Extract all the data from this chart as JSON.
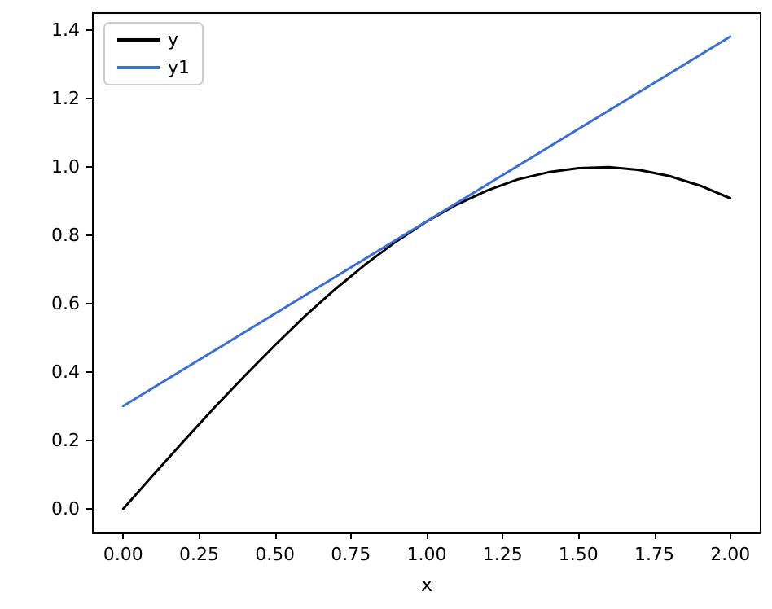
{
  "chart_data": {
    "type": "line",
    "xlabel": "x",
    "series": [
      {
        "name": "y",
        "color": "#000000",
        "x": [
          0,
          0.1,
          0.2,
          0.3,
          0.4,
          0.5,
          0.6,
          0.7,
          0.8,
          0.9,
          1.0,
          1.1,
          1.2,
          1.3,
          1.4,
          1.5,
          1.6,
          1.7,
          1.8,
          1.9,
          2.0
        ],
        "values": [
          0,
          0.1,
          0.199,
          0.296,
          0.389,
          0.479,
          0.565,
          0.644,
          0.717,
          0.783,
          0.841,
          0.891,
          0.932,
          0.964,
          0.985,
          0.997,
          1.0,
          0.992,
          0.974,
          0.946,
          0.909
        ]
      },
      {
        "name": "y1",
        "color": "#3a6fd6",
        "x": [
          0,
          2
        ],
        "values": [
          0.301,
          1.382
        ]
      }
    ],
    "xlim": [
      -0.1,
      2.1
    ],
    "ylim": [
      -0.069,
      1.451
    ],
    "xticks": [
      {
        "value": 0,
        "label": "0.00"
      },
      {
        "value": 0.25,
        "label": "0.25"
      },
      {
        "value": 0.5,
        "label": "0.50"
      },
      {
        "value": 0.75,
        "label": "0.75"
      },
      {
        "value": 1,
        "label": "1.00"
      },
      {
        "value": 1.25,
        "label": "1.25"
      },
      {
        "value": 1.5,
        "label": "1.50"
      },
      {
        "value": 1.75,
        "label": "1.75"
      },
      {
        "value": 2,
        "label": "2.00"
      }
    ],
    "yticks": [
      {
        "value": 0,
        "label": "0.0"
      },
      {
        "value": 0.2,
        "label": "0.2"
      },
      {
        "value": 0.4,
        "label": "0.4"
      },
      {
        "value": 0.6,
        "label": "0.6"
      },
      {
        "value": 0.8,
        "label": "0.8"
      },
      {
        "value": 1,
        "label": "1.0"
      },
      {
        "value": 1.2,
        "label": "1.2"
      },
      {
        "value": 1.4,
        "label": "1.4"
      }
    ],
    "legend": "top left",
    "marker": "none",
    "line_style": "solid"
  }
}
